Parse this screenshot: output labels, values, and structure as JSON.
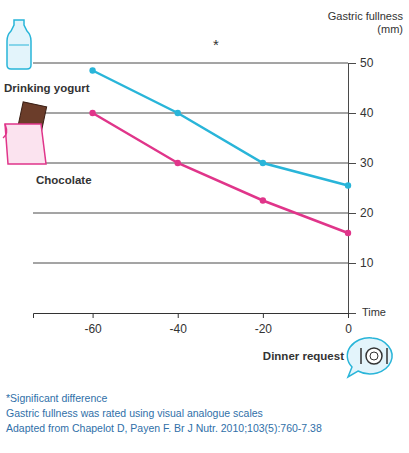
{
  "chart_data": {
    "type": "line",
    "y_label": "Gastric fullness (mm)",
    "x_label": "Time",
    "annotations": [
      "*",
      "Dinner request"
    ],
    "notes": [
      "*Significant difference",
      "Gastric fullness was rated using visual analogue scales",
      "Adapted from Chapelot D, Payen F. Br J Nutr. 2010;103(5):760-7.38"
    ],
    "x": [
      -60,
      -40,
      -20,
      0
    ],
    "series": [
      {
        "name": "Drinking yogurt",
        "color": "#29b5d9",
        "values": [
          48.5,
          40,
          30,
          25.5
        ],
        "marker": "circle"
      },
      {
        "name": "Chocolate",
        "color": "#e0358a",
        "values": [
          40,
          30,
          22.5,
          16
        ],
        "marker": "circle"
      }
    ],
    "xlim": [
      -74,
      0
    ],
    "xticks": [
      -60,
      -40,
      -20,
      0
    ],
    "ylim": [
      0,
      50
    ],
    "yticks": [
      10,
      20,
      30,
      40,
      50
    ],
    "grid": true
  }
}
